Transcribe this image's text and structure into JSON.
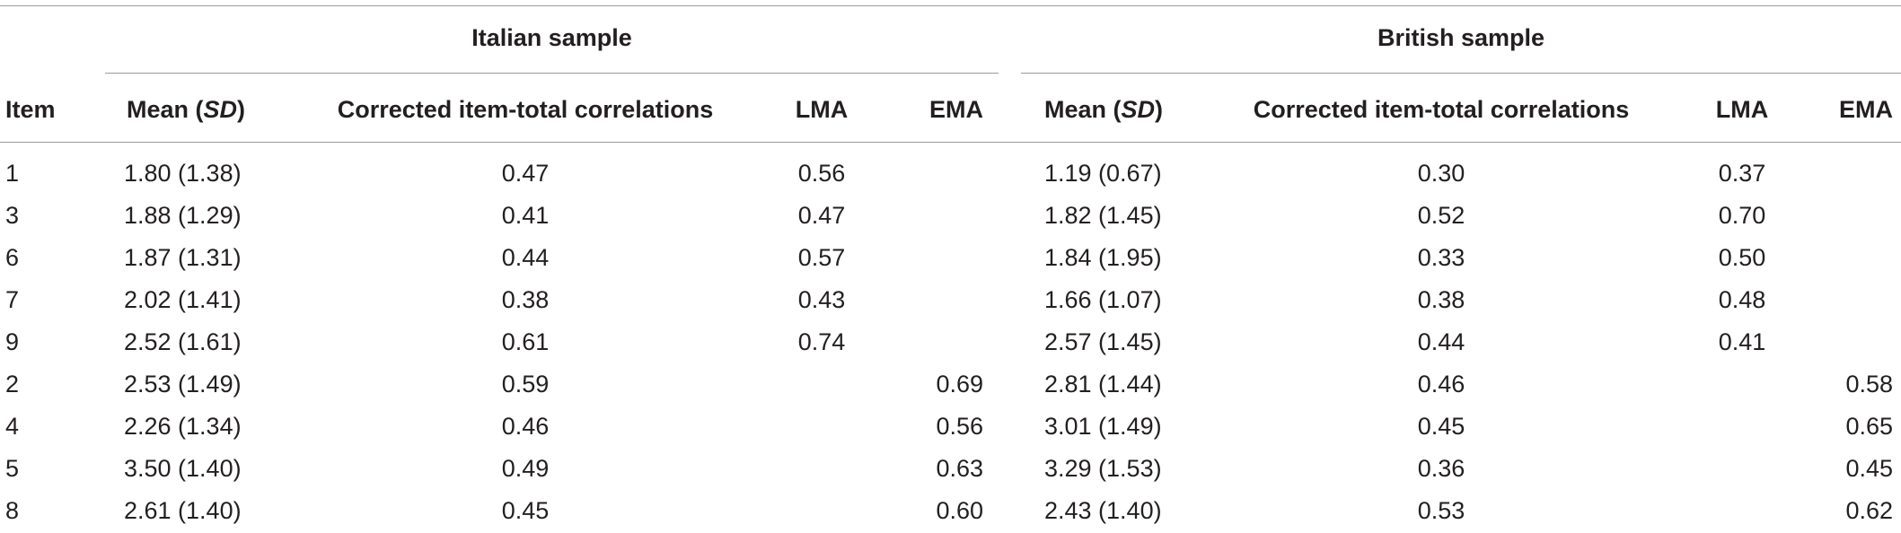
{
  "groups": {
    "italian": "Italian sample",
    "british": "British sample"
  },
  "headers": {
    "item": "Item",
    "mean_prefix": "Mean (",
    "mean_sd": "SD",
    "mean_suffix": ")",
    "corr": "Corrected item-total correlations",
    "lma": "LMA",
    "ema": "EMA"
  },
  "rows": [
    {
      "item": "1",
      "it_mean": "1.80 (1.38)",
      "it_corr": "0.47",
      "it_lma": "0.56",
      "it_ema": "",
      "br_mean": "1.19 (0.67)",
      "br_corr": "0.30",
      "br_lma": "0.37",
      "br_ema": ""
    },
    {
      "item": "3",
      "it_mean": "1.88 (1.29)",
      "it_corr": "0.41",
      "it_lma": "0.47",
      "it_ema": "",
      "br_mean": "1.82 (1.45)",
      "br_corr": "0.52",
      "br_lma": "0.70",
      "br_ema": ""
    },
    {
      "item": "6",
      "it_mean": "1.87 (1.31)",
      "it_corr": "0.44",
      "it_lma": "0.57",
      "it_ema": "",
      "br_mean": "1.84 (1.95)",
      "br_corr": "0.33",
      "br_lma": "0.50",
      "br_ema": ""
    },
    {
      "item": "7",
      "it_mean": "2.02 (1.41)",
      "it_corr": "0.38",
      "it_lma": "0.43",
      "it_ema": "",
      "br_mean": "1.66 (1.07)",
      "br_corr": "0.38",
      "br_lma": "0.48",
      "br_ema": ""
    },
    {
      "item": "9",
      "it_mean": "2.52 (1.61)",
      "it_corr": "0.61",
      "it_lma": "0.74",
      "it_ema": "",
      "br_mean": "2.57 (1.45)",
      "br_corr": "0.44",
      "br_lma": "0.41",
      "br_ema": ""
    },
    {
      "item": "2",
      "it_mean": "2.53 (1.49)",
      "it_corr": "0.59",
      "it_lma": "",
      "it_ema": "0.69",
      "br_mean": "2.81 (1.44)",
      "br_corr": "0.46",
      "br_lma": "",
      "br_ema": "0.58"
    },
    {
      "item": "4",
      "it_mean": "2.26 (1.34)",
      "it_corr": "0.46",
      "it_lma": "",
      "it_ema": "0.56",
      "br_mean": "3.01 (1.49)",
      "br_corr": "0.45",
      "br_lma": "",
      "br_ema": "0.65"
    },
    {
      "item": "5",
      "it_mean": "3.50 (1.40)",
      "it_corr": "0.49",
      "it_lma": "",
      "it_ema": "0.63",
      "br_mean": "3.29 (1.53)",
      "br_corr": "0.36",
      "br_lma": "",
      "br_ema": "0.45"
    },
    {
      "item": "8",
      "it_mean": "2.61 (1.40)",
      "it_corr": "0.45",
      "it_lma": "",
      "it_ema": "0.60",
      "br_mean": "2.43 (1.40)",
      "br_corr": "0.53",
      "br_lma": "",
      "br_ema": "0.62"
    }
  ]
}
